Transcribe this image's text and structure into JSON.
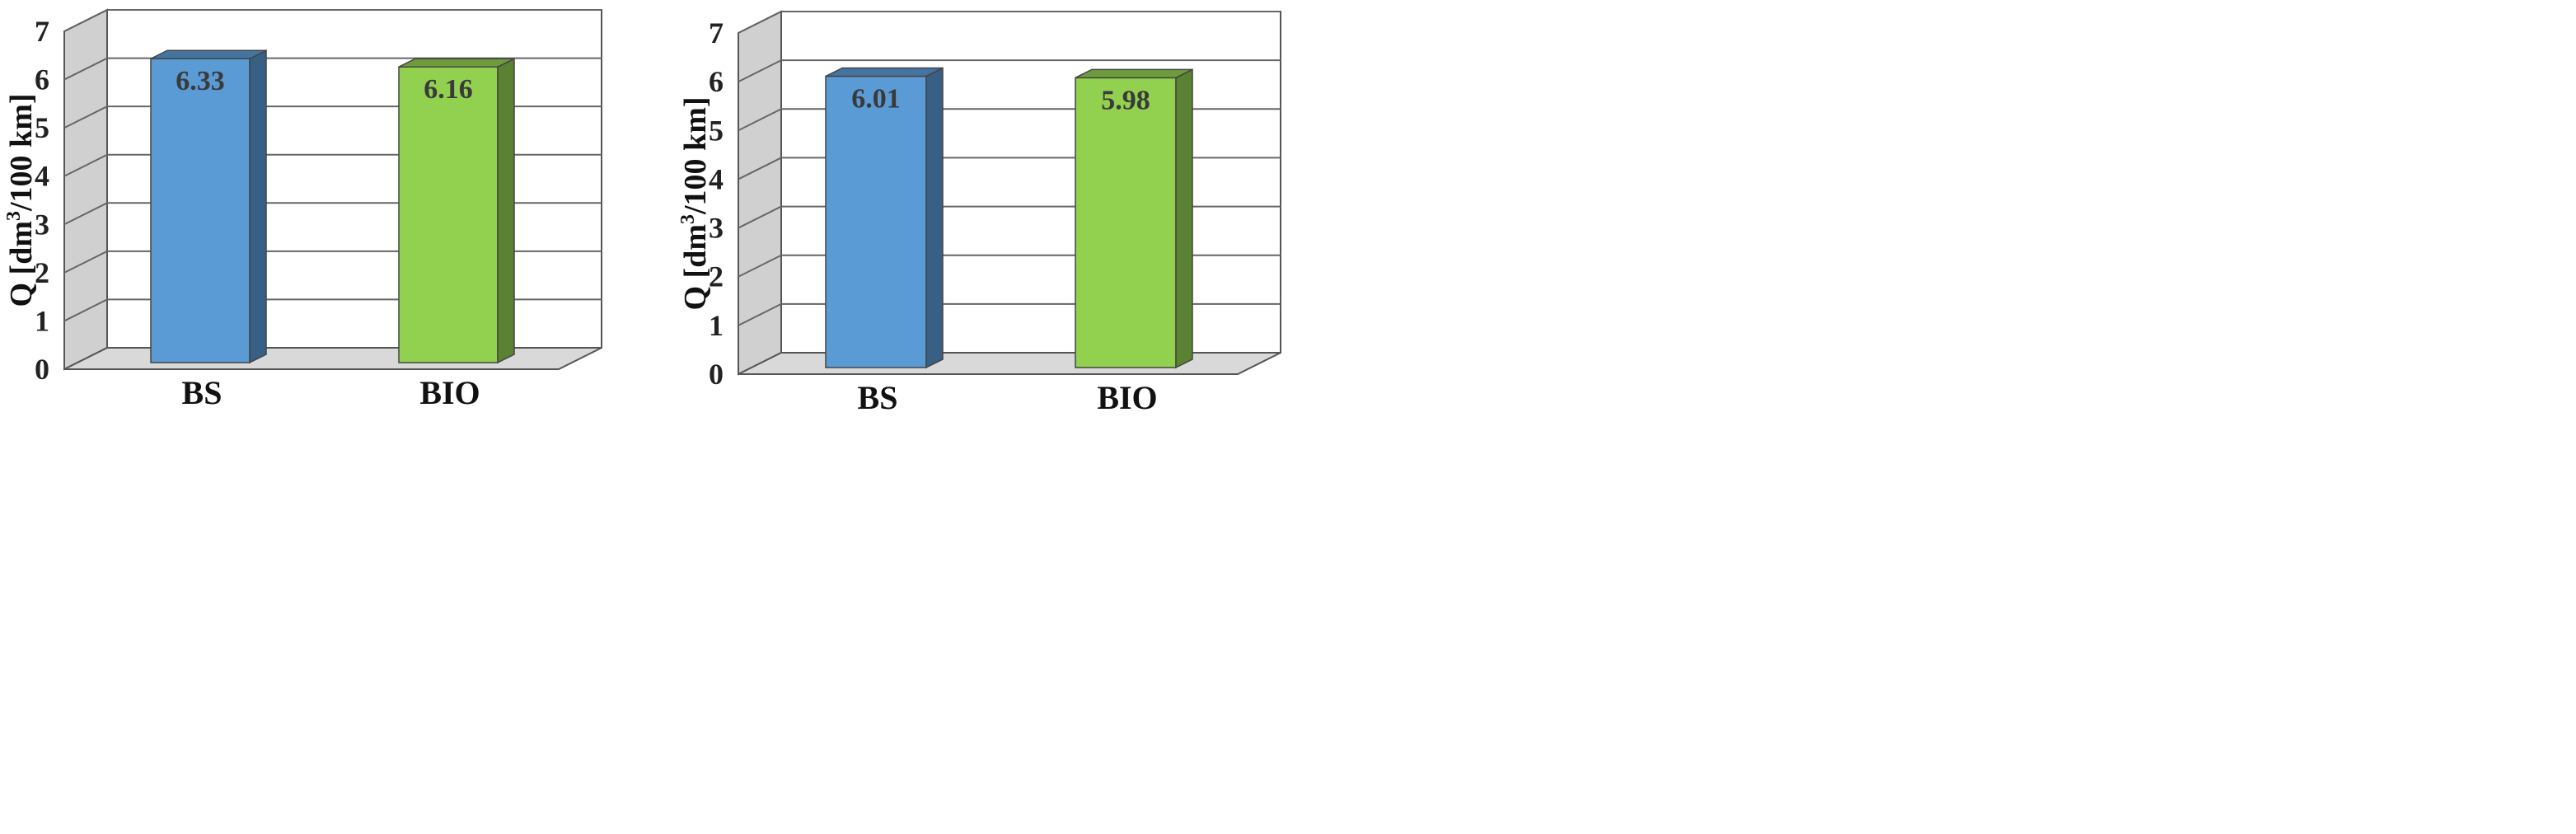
{
  "chart_data": [
    {
      "type": "bar",
      "categories": [
        "BS",
        "BIO"
      ],
      "values": [
        6.33,
        6.16
      ],
      "value_labels": [
        "6.33",
        "6.16"
      ],
      "ylabel_main": "Q [dm",
      "ylabel_sup": "3",
      "ylabel_end": "/100 km]",
      "ylim": [
        0,
        7
      ],
      "yticks": [
        "0",
        "1",
        "2",
        "3",
        "4",
        "5",
        "6",
        "7"
      ],
      "grid": true,
      "three_d": true,
      "colors": [
        "#5b9bd5",
        "#92d050"
      ]
    },
    {
      "type": "bar",
      "categories": [
        "BS",
        "BIO"
      ],
      "values": [
        6.01,
        5.98
      ],
      "value_labels": [
        "6.01",
        "5.98"
      ],
      "ylabel_main": "Q [dm",
      "ylabel_sup": "3",
      "ylabel_end": "/100 km]",
      "ylim": [
        0,
        7
      ],
      "yticks": [
        "0",
        "1",
        "2",
        "3",
        "4",
        "5",
        "6",
        "7"
      ],
      "grid": true,
      "three_d": true,
      "colors": [
        "#5b9bd5",
        "#92d050"
      ]
    }
  ]
}
